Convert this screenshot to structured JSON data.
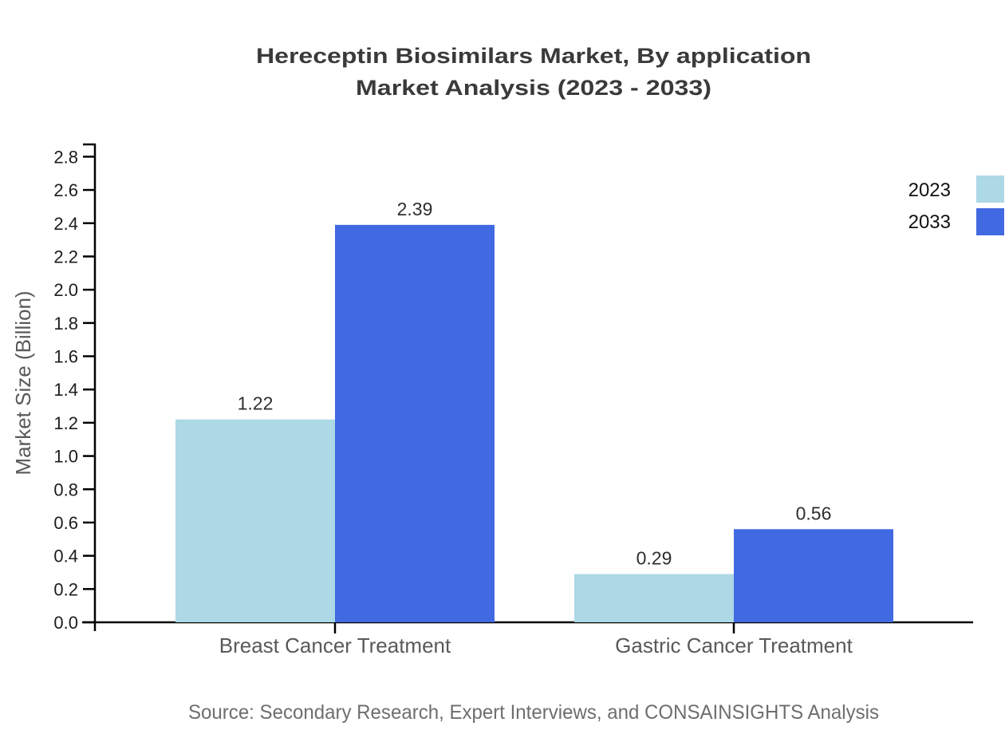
{
  "title": {
    "line1": "Hereceptin Biosimilars Market, By application",
    "line2": "Market Analysis (2023 - 2033)"
  },
  "source_note": "Source: Secondary Research, Expert Interviews, and CONSAINSIGHTS Analysis",
  "colors": {
    "series_2023": "#ADD8E6",
    "series_2033": "#4169E1",
    "axis": "#000000",
    "title_text": "#3A3A3A",
    "tick_text": "#1C1C1C",
    "category_text": "#595959",
    "value_text": "#2E2E2E",
    "source_text": "#6E6E6E",
    "background": "#FFFFFF"
  },
  "chart_data": {
    "type": "bar",
    "title": "Hereceptin Biosimilars Market, By application Market Analysis (2023 - 2033)",
    "categories": [
      "Breast Cancer Treatment",
      "Gastric Cancer Treatment"
    ],
    "series": [
      {
        "name": "2023",
        "color": "#ADD8E6",
        "values": [
          1.22,
          0.29
        ]
      },
      {
        "name": "2033",
        "color": "#4169E1",
        "values": [
          2.39,
          0.56
        ]
      }
    ],
    "value_labels": [
      [
        "1.22",
        "0.29"
      ],
      [
        "2.39",
        "0.56"
      ]
    ],
    "xlabel": "",
    "ylabel": "Market Size (Billion)",
    "ylim": [
      0.0,
      2.8
    ],
    "ytick_step": 0.2,
    "yticks": [
      "0.0",
      "0.2",
      "0.4",
      "0.6",
      "0.8",
      "1.0",
      "1.2",
      "1.4",
      "1.6",
      "1.8",
      "2.0",
      "2.2",
      "2.4",
      "2.6",
      "2.8"
    ],
    "grid": false,
    "legend_position": "top-right",
    "bar_orientation": "vertical"
  }
}
